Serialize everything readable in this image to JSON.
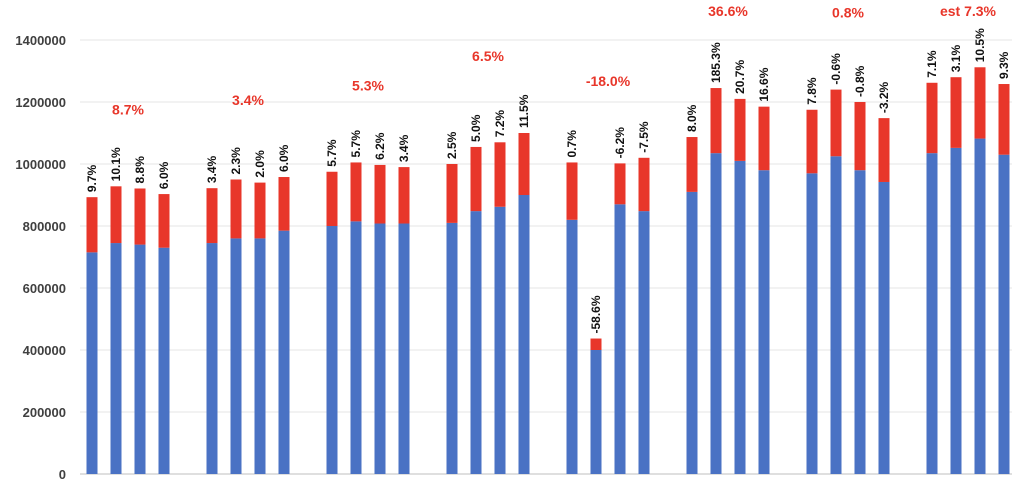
{
  "chart_data": {
    "type": "bar",
    "stacked": true,
    "title": "",
    "xlabel": "",
    "ylabel": "",
    "ylim": [
      0,
      1450000
    ],
    "yticks": [
      0,
      200000,
      400000,
      600000,
      800000,
      1000000,
      1200000,
      1400000
    ],
    "ytick_labels": [
      "0",
      "200000",
      "400000",
      "600000",
      "800000",
      "1000000",
      "1200000",
      "1400000"
    ],
    "grid": "horizontal",
    "colors": {
      "base": "#4a72c4",
      "top": "#e8362a",
      "group_label": "#e8362a"
    },
    "groups": [
      {
        "label": "8.7%",
        "bars": [
          {
            "base": 715000,
            "total": 893000,
            "label": "9.7%"
          },
          {
            "base": 745000,
            "total": 928000,
            "label": "10.1%"
          },
          {
            "base": 740000,
            "total": 921000,
            "label": "8.8%"
          },
          {
            "base": 730000,
            "total": 903000,
            "label": "6.0%"
          }
        ]
      },
      {
        "label": "3.4%",
        "bars": [
          {
            "base": 745000,
            "total": 922000,
            "label": "3.4%"
          },
          {
            "base": 760000,
            "total": 950000,
            "label": "2.3%"
          },
          {
            "base": 760000,
            "total": 940000,
            "label": "2.0%"
          },
          {
            "base": 785000,
            "total": 958000,
            "label": "6.0%"
          }
        ]
      },
      {
        "label": "5.3%",
        "bars": [
          {
            "base": 800000,
            "total": 975000,
            "label": "5.7%"
          },
          {
            "base": 815000,
            "total": 1005000,
            "label": "5.7%"
          },
          {
            "base": 808000,
            "total": 997000,
            "label": "6.2%"
          },
          {
            "base": 808000,
            "total": 990000,
            "label": "3.4%"
          }
        ]
      },
      {
        "label": "6.5%",
        "bars": [
          {
            "base": 810000,
            "total": 1000000,
            "label": "2.5%"
          },
          {
            "base": 848000,
            "total": 1055000,
            "label": "5.0%"
          },
          {
            "base": 862000,
            "total": 1070000,
            "label": "7.2%"
          },
          {
            "base": 900000,
            "total": 1100000,
            "label": "11.5%"
          }
        ]
      },
      {
        "label": "-18.0%",
        "bars": [
          {
            "base": 820000,
            "total": 1005000,
            "label": "0.7%"
          },
          {
            "base": 400000,
            "total": 437000,
            "label": "-58.6%"
          },
          {
            "base": 870000,
            "total": 1002000,
            "label": "-6.2%"
          },
          {
            "base": 848000,
            "total": 1020000,
            "label": "-7.5%"
          }
        ]
      },
      {
        "label": "36.6%",
        "bars": [
          {
            "base": 910000,
            "total": 1087000,
            "label": "8.0%"
          },
          {
            "base": 1035000,
            "total": 1245000,
            "label": "185.3%"
          },
          {
            "base": 1010000,
            "total": 1210000,
            "label": "20.7%"
          },
          {
            "base": 980000,
            "total": 1185000,
            "label": "16.6%"
          }
        ]
      },
      {
        "label": "0.8%",
        "bars": [
          {
            "base": 970000,
            "total": 1175000,
            "label": "7.8%"
          },
          {
            "base": 1025000,
            "total": 1240000,
            "label": "-0.6%"
          },
          {
            "base": 980000,
            "total": 1200000,
            "label": "-0.8%"
          },
          {
            "base": 942000,
            "total": 1148000,
            "label": "-3.2%"
          }
        ]
      },
      {
        "label": "est 7.3%",
        "bars": [
          {
            "base": 1035000,
            "total": 1262000,
            "label": "7.1%"
          },
          {
            "base": 1052000,
            "total": 1280000,
            "label": "3.1%"
          },
          {
            "base": 1082000,
            "total": 1312000,
            "label": "10.5%"
          },
          {
            "base": 1030000,
            "total": 1258000,
            "label": "9.3%"
          }
        ]
      }
    ]
  }
}
